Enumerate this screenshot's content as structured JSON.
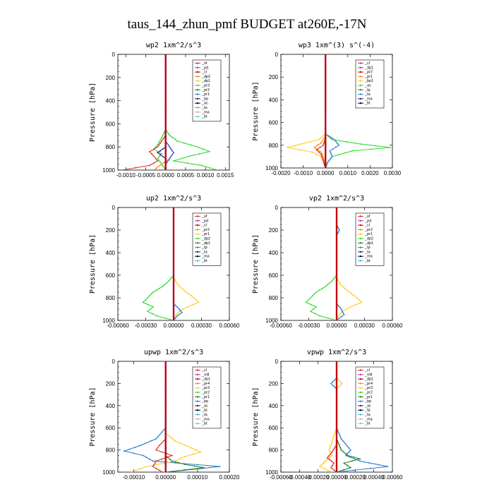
{
  "title": "taus_144_zhun_pmf  BUDGET at260E,-17N",
  "chart_data": [
    {
      "type": "line",
      "title": "wp2  1xm^2/s^3",
      "ylabel": "Pressure [hPa]",
      "xlim": [
        -0.0012,
        0.0016
      ],
      "ylim": [
        1000,
        0
      ],
      "xticks": [
        -0.001,
        -0.0005,
        0.0,
        0.0005,
        0.001,
        0.0015
      ],
      "xtick_labels": [
        "-0.0010",
        "-0.0005",
        "0.0000",
        "0.0005",
        "0.0010",
        "0.0015"
      ],
      "yticks": [
        0,
        200,
        400,
        600,
        800,
        1000
      ],
      "ytick_labels": [
        "0",
        "200",
        "400",
        "600",
        "800",
        "1000"
      ],
      "legend": [
        "_sf",
        "_pd",
        "_cl",
        "_dp2",
        "_dp1",
        "_pr3",
        "_pr2",
        "_pr1",
        "_bp",
        "_ac",
        "_ta",
        "_ma",
        "_bt"
      ],
      "series": [
        {
          "name": "_pr1",
          "color": "#33dd33",
          "y": [
            650,
            700,
            750,
            800,
            840,
            880,
            920,
            960,
            1000
          ],
          "x": [
            0.0,
            0.0001,
            0.0003,
            0.0008,
            0.0011,
            0.0006,
            0.0002,
            0.0009,
            0.0013
          ]
        },
        {
          "name": "_bp",
          "color": "#33dd33",
          "y": [
            650,
            720,
            780,
            820,
            860,
            900,
            950,
            1000
          ],
          "x": [
            0.0,
            -0.0001,
            -0.0002,
            -0.0003,
            -0.0001,
            -0.0002,
            -0.0001,
            0.0
          ]
        },
        {
          "name": "_dp1",
          "color": "#e03030",
          "y": [
            700,
            750,
            800,
            840,
            880,
            920,
            960,
            1000
          ],
          "x": [
            0.0,
            -0.0001,
            -0.0002,
            -0.0004,
            -0.0003,
            -0.0002,
            -0.0004,
            -0.0011
          ]
        },
        {
          "name": "_dp2",
          "color": "#ff8800",
          "y": [
            750,
            800,
            850,
            900,
            950,
            1000
          ],
          "x": [
            0.0,
            0.0001,
            0.0002,
            0.0001,
            -0.0001,
            -0.0003
          ]
        },
        {
          "name": "_ac",
          "color": "#3060e0",
          "y": [
            750,
            800,
            850,
            900,
            950,
            1000
          ],
          "x": [
            0.0,
            0.0001,
            0.0002,
            0.0001,
            0.0,
            0.0
          ]
        },
        {
          "name": "_ta",
          "color": "#202080",
          "y": [
            800,
            850,
            900,
            1000
          ],
          "x": [
            0.0,
            -0.0002,
            0.0,
            0.0
          ]
        },
        {
          "name": "_sf",
          "color": "#9933cc",
          "y": [
            0,
            1000
          ],
          "x": [
            0.0,
            0.0
          ]
        },
        {
          "name": "_bt",
          "color": "#c00000",
          "y": [
            0,
            1000
          ],
          "x": [
            0.0,
            0.0
          ]
        }
      ]
    },
    {
      "type": "line",
      "title": "wp3  1xm^(3) s^(-4)",
      "ylabel": "Pressure [hPa]",
      "xlim": [
        -0.002,
        0.003
      ],
      "ylim": [
        1000,
        0
      ],
      "xticks": [
        -0.002,
        -0.001,
        0.0,
        0.001,
        0.002,
        0.003
      ],
      "xtick_labels": [
        "-0.0020",
        "-0.0010",
        "0.0000",
        "0.0010",
        "0.0020",
        "0.0030"
      ],
      "yticks": [
        0,
        200,
        400,
        600,
        800,
        1000
      ],
      "ytick_labels": [
        "0",
        "200",
        "400",
        "600",
        "800",
        "1000"
      ],
      "legend": [
        "_cl",
        "_dp1",
        "_pr2",
        "_pr1",
        "_bp1",
        "_ac",
        "_tp",
        "_ta",
        "_ma",
        "_bt"
      ],
      "series": [
        {
          "name": "_bp1",
          "color": "#33dd33",
          "y": [
            700,
            750,
            790,
            820,
            850,
            900,
            950,
            1000
          ],
          "x": [
            0.0,
            0.0003,
            0.0016,
            0.0029,
            0.0012,
            0.0003,
            0.0001,
            0.0
          ]
        },
        {
          "name": "_pr2",
          "color": "#ffcc22",
          "y": [
            700,
            750,
            790,
            820,
            860,
            900,
            950,
            1000
          ],
          "x": [
            0.0,
            -0.0003,
            -0.0011,
            -0.0017,
            -0.0006,
            -0.0002,
            0.0,
            0.0
          ]
        },
        {
          "name": "_pr1",
          "color": "#ff8800",
          "y": [
            720,
            780,
            820,
            860,
            900,
            1000
          ],
          "x": [
            0.0,
            -0.0002,
            -0.0005,
            -0.0002,
            -0.0001,
            0.0
          ]
        },
        {
          "name": "_dp1",
          "color": "#e03030",
          "y": [
            740,
            800,
            840,
            880,
            940,
            1000
          ],
          "x": [
            0.0,
            -0.0001,
            -0.0004,
            -0.0002,
            -0.0001,
            0.0
          ]
        },
        {
          "name": "_tp",
          "color": "#3080d0",
          "y": [
            700,
            750,
            800,
            850,
            900,
            950,
            1000
          ],
          "x": [
            0.0,
            0.0004,
            0.0006,
            0.0002,
            0.0003,
            0.0001,
            0.0
          ]
        },
        {
          "name": "_cl",
          "color": "#9933cc",
          "y": [
            0,
            1000
          ],
          "x": [
            0.0,
            0.0
          ]
        },
        {
          "name": "_bt",
          "color": "#c00000",
          "y": [
            0,
            1000
          ],
          "x": [
            0.0,
            0.0
          ]
        }
      ]
    },
    {
      "type": "line",
      "title": "up2  1xm^2/s^3",
      "ylabel": "Pressure [hPa]",
      "xlim": [
        -0.0006,
        0.0006
      ],
      "ylim": [
        1000,
        0
      ],
      "xticks": [
        -0.0006,
        -0.0003,
        0.0,
        0.0003,
        0.0006
      ],
      "xtick_labels": [
        "-0.00060",
        "-0.00030",
        "0.00000",
        "0.00030",
        "0.00060"
      ],
      "yticks": [
        0,
        200,
        400,
        600,
        800,
        1000
      ],
      "ytick_labels": [
        "0",
        "200",
        "400",
        "600",
        "800",
        "1000"
      ],
      "legend": [
        "_sf",
        "_pd",
        "_cl",
        "_pr2",
        "_pr1",
        "_dp2",
        "_dp1",
        "_tp",
        "_ta",
        "_ma",
        "_bt"
      ],
      "series": [
        {
          "name": "_dp1",
          "color": "#33dd33",
          "y": [
            600,
            650,
            700,
            750,
            800,
            840,
            880,
            920,
            960,
            1000
          ],
          "x": [
            0.0,
            -5e-05,
            -0.00012,
            -0.00022,
            -0.00028,
            -0.00033,
            -0.00022,
            -0.00028,
            -0.00018,
            0.0
          ]
        },
        {
          "name": "_pr1",
          "color": "#ffcc22",
          "y": [
            620,
            680,
            740,
            800,
            840,
            880,
            920,
            960,
            1000
          ],
          "x": [
            0.0,
            4e-05,
            0.00012,
            0.00022,
            0.00027,
            0.00015,
            6e-05,
            2e-05,
            0.0
          ]
        },
        {
          "name": "_tp",
          "color": "#3080d0",
          "y": [
            850,
            900,
            930,
            960,
            1000
          ],
          "x": [
            0.0,
            6e-05,
            9e-05,
            4e-05,
            0.0
          ]
        },
        {
          "name": "_sf",
          "color": "#9933cc",
          "y": [
            0,
            1000
          ],
          "x": [
            0.0,
            0.0
          ]
        },
        {
          "name": "_bt",
          "color": "#c00000",
          "y": [
            0,
            1000
          ],
          "x": [
            0.0,
            0.0
          ]
        }
      ]
    },
    {
      "type": "line",
      "title": "vp2  1xm^2/s^3",
      "ylabel": "Pressure [hPa]",
      "xlim": [
        -0.0006,
        0.0006
      ],
      "ylim": [
        1000,
        0
      ],
      "xticks": [
        -0.0006,
        -0.0003,
        0.0,
        0.0003,
        0.0006
      ],
      "xtick_labels": [
        "-0.00060",
        "-0.00030",
        "0.00000",
        "0.00030",
        "0.00060"
      ],
      "yticks": [
        0,
        200,
        400,
        600,
        800,
        1000
      ],
      "ytick_labels": [
        "0",
        "200",
        "400",
        "600",
        "800",
        "1000"
      ],
      "legend": [
        "_sf",
        "_pd",
        "_cl",
        "_pr2",
        "_pr1",
        "_dp2",
        "_dp1",
        "_tp",
        "_ta",
        "_ma",
        "_bt"
      ],
      "series": [
        {
          "name": "_dp1",
          "color": "#33dd33",
          "y": [
            600,
            650,
            700,
            750,
            800,
            840,
            880,
            920,
            960,
            1000
          ],
          "x": [
            0.0,
            -5e-05,
            -0.00012,
            -0.00022,
            -0.00028,
            -0.00033,
            -0.00022,
            -0.00028,
            -0.00018,
            0.0
          ]
        },
        {
          "name": "_pr1",
          "color": "#ffcc22",
          "y": [
            620,
            680,
            740,
            800,
            840,
            880,
            920,
            960,
            1000
          ],
          "x": [
            0.0,
            4e-05,
            0.00012,
            0.00022,
            0.00027,
            0.00015,
            6e-05,
            2e-05,
            0.0
          ]
        },
        {
          "name": "_tp",
          "color": "#3080d0",
          "y": [
            150,
            200,
            250,
            850,
            900,
            950,
            1000
          ],
          "x": [
            0.0,
            3e-05,
            0.0,
            0.0,
            5e-05,
            8e-05,
            0.0
          ]
        },
        {
          "name": "_sf",
          "color": "#9933cc",
          "y": [
            0,
            1000
          ],
          "x": [
            0.0,
            0.0
          ]
        },
        {
          "name": "_bt",
          "color": "#c00000",
          "y": [
            0,
            1000
          ],
          "x": [
            0.0,
            0.0
          ]
        }
      ]
    },
    {
      "type": "line",
      "title": "upwp  1xm^2/s^3",
      "ylabel": "Pressure [hPa]",
      "xlim": [
        -0.00015,
        0.0002
      ],
      "ylim": [
        1000,
        0
      ],
      "xticks": [
        -0.0001,
        0.0,
        0.0001,
        0.0002
      ],
      "xtick_labels": [
        "-0.00010",
        "0.00000",
        "0.00010",
        "0.00020"
      ],
      "yticks": [
        0,
        200,
        400,
        600,
        800,
        1000
      ],
      "ytick_labels": [
        "0",
        "200",
        "400",
        "600",
        "800",
        "1000"
      ],
      "legend": [
        "_cl",
        "_mfl",
        "_dp1",
        "_pr4",
        "_pr3",
        "_pr2",
        "_pr1",
        "_bp",
        "_ac",
        "_tp",
        "_ta",
        "_ma",
        "_bt"
      ],
      "series": [
        {
          "name": "_tp",
          "color": "#3080d0",
          "y": [
            600,
            700,
            760,
            810,
            850,
            900,
            950,
            1000
          ],
          "x": [
            0.0,
            -3e-05,
            -8e-05,
            -0.00013,
            -7e-05,
            -4e-05,
            0.00017,
            0.0
          ]
        },
        {
          "name": "_pr2",
          "color": "#ffcc22",
          "y": [
            650,
            720,
            780,
            820,
            860,
            900,
            950,
            1000
          ],
          "x": [
            0.0,
            3e-05,
            8e-05,
            0.00011,
            6e-05,
            3e-05,
            -6e-05,
            -0.00011
          ]
        },
        {
          "name": "_dp1",
          "color": "#e03030",
          "y": [
            700,
            760,
            800,
            850,
            900,
            950,
            1000
          ],
          "x": [
            0.0,
            -2e-05,
            -3e-05,
            2e-05,
            -3e-05,
            -4e-05,
            -1e-05
          ]
        },
        {
          "name": "_bp",
          "color": "#208020",
          "y": [
            850,
            900,
            930,
            960,
            1000
          ],
          "x": [
            0.0,
            2e-05,
            6e-05,
            0.00012,
            0.0
          ]
        },
        {
          "name": "_cl",
          "color": "#9933cc",
          "y": [
            0,
            1000
          ],
          "x": [
            0.0,
            0.0
          ]
        },
        {
          "name": "_bt",
          "color": "#c00000",
          "y": [
            0,
            1000
          ],
          "x": [
            0.0,
            0.0
          ]
        }
      ]
    },
    {
      "type": "line",
      "title": "vpwp  1xm^2/s^3",
      "ylabel": "Pressure [hPa]",
      "xlim": [
        -0.0006,
        0.0006
      ],
      "ylim": [
        1000,
        0
      ],
      "xticks": [
        -0.0006,
        -0.0004,
        -0.0002,
        0.0,
        0.0002,
        0.0004,
        0.0006
      ],
      "xtick_labels": [
        "-0.00060",
        "-0.00040",
        "-0.00020",
        "0.00000",
        "0.00020",
        "0.00040",
        "0.00060"
      ],
      "yticks": [
        0,
        200,
        400,
        600,
        800,
        1000
      ],
      "ytick_labels": [
        "0",
        "200",
        "400",
        "600",
        "800",
        "1000"
      ],
      "legend": [
        "_cl",
        "_mfl",
        "_dp1",
        "_pr4",
        "_pr3",
        "_pr2",
        "_pr1",
        "_bp",
        "_ac",
        "_tp",
        "_ta",
        "_ma",
        "_bt"
      ],
      "series": [
        {
          "name": "_tp",
          "color": "#3080d0",
          "y": [
            150,
            200,
            250,
            600,
            700,
            800,
            850,
            900,
            950,
            1000
          ],
          "x": [
            0.0,
            -6e-05,
            0.0,
            0.0,
            5e-05,
            0.00015,
            0.0001,
            0.00025,
            0.00055,
            0.0
          ]
        },
        {
          "name": "_pr2",
          "color": "#ffcc22",
          "y": [
            150,
            200,
            250,
            600,
            700,
            800,
            850,
            900,
            950,
            1000
          ],
          "x": [
            0.0,
            6e-05,
            0.0,
            0.0,
            -4e-05,
            -8e-05,
            -5e-05,
            -0.00012,
            -0.00018,
            -5e-05
          ]
        },
        {
          "name": "_bp",
          "color": "#208020",
          "y": [
            700,
            800,
            850,
            880,
            920,
            960,
            1000
          ],
          "x": [
            0.0,
            5e-05,
            0.00012,
            0.00025,
            8e-05,
            0.00015,
            0.0
          ]
        },
        {
          "name": "_dp1",
          "color": "#e03030",
          "y": [
            750,
            820,
            870,
            920,
            960,
            1000
          ],
          "x": [
            0.0,
            -5e-05,
            -0.0001,
            -3e-05,
            -6e-05,
            0.0
          ]
        },
        {
          "name": "_cl",
          "color": "#9933cc",
          "y": [
            0,
            1000
          ],
          "x": [
            0.0,
            0.0
          ]
        },
        {
          "name": "_bt",
          "color": "#c00000",
          "y": [
            0,
            1000
          ],
          "x": [
            0.0,
            0.0
          ]
        }
      ]
    }
  ]
}
